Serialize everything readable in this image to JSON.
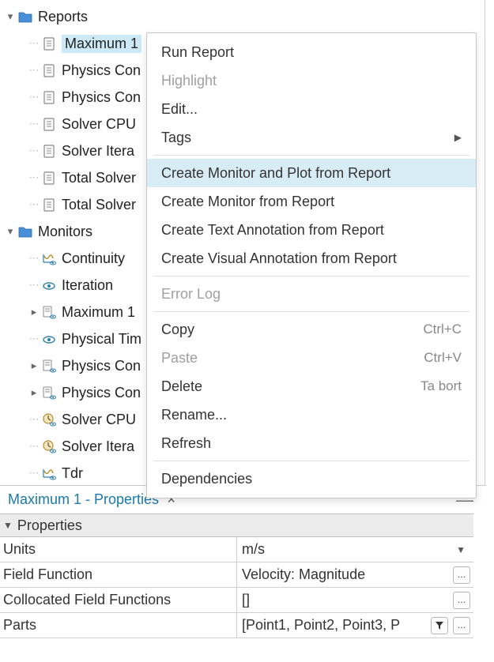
{
  "colors": {
    "selection_bg": "#cde8f6",
    "menu_hover_bg": "#d7ecf5",
    "folder_fill": "#4a90d9",
    "title_link": "#1a7aa8",
    "disabled_text": "#a0a0a0"
  },
  "tree": {
    "reports": {
      "label": "Reports",
      "items": [
        {
          "label": "Maximum 1",
          "selected": true
        },
        {
          "label": "Physics Con"
        },
        {
          "label": "Physics Con"
        },
        {
          "label": "Solver CPU"
        },
        {
          "label": "Solver Itera"
        },
        {
          "label": "Total Solver"
        },
        {
          "label": "Total Solver"
        }
      ]
    },
    "monitors": {
      "label": "Monitors",
      "items": [
        {
          "label": "Continuity",
          "icon": "residual"
        },
        {
          "label": "Iteration",
          "icon": "eye"
        },
        {
          "label": "Maximum 1",
          "icon": "report-mon",
          "expandable": true
        },
        {
          "label": "Physical Tim",
          "icon": "eye"
        },
        {
          "label": "Physics Con",
          "icon": "report-mon",
          "expandable": true
        },
        {
          "label": "Physics Con",
          "icon": "report-mon",
          "expandable": true
        },
        {
          "label": "Solver CPU",
          "icon": "clock-mon"
        },
        {
          "label": "Solver Itera",
          "icon": "clock-mon"
        },
        {
          "label": "Tdr",
          "icon": "residual"
        }
      ]
    }
  },
  "context_menu": {
    "items": [
      {
        "label": "Run Report",
        "enabled": true
      },
      {
        "label": "Highlight",
        "enabled": false
      },
      {
        "label": "Edit...",
        "enabled": true
      },
      {
        "label": "Tags",
        "enabled": true,
        "submenu": true
      },
      {
        "sep": true
      },
      {
        "label": "Create Monitor and Plot from Report",
        "enabled": true,
        "hovered": true
      },
      {
        "label": "Create Monitor from Report",
        "enabled": true
      },
      {
        "label": "Create Text Annotation from Report",
        "enabled": true
      },
      {
        "label": "Create Visual Annotation from Report",
        "enabled": true
      },
      {
        "sep": true
      },
      {
        "label": "Error Log",
        "enabled": false
      },
      {
        "sep": true
      },
      {
        "label": "Copy",
        "enabled": true,
        "shortcut": "Ctrl+C"
      },
      {
        "label": "Paste",
        "enabled": false,
        "shortcut": "Ctrl+V"
      },
      {
        "label": "Delete",
        "enabled": true,
        "shortcut": "Ta bort"
      },
      {
        "label": "Rename...",
        "enabled": true
      },
      {
        "label": "Refresh",
        "enabled": true
      },
      {
        "sep": true
      },
      {
        "label": "Dependencies",
        "enabled": true
      }
    ]
  },
  "properties_panel": {
    "title": "Maximum 1 - Properties",
    "header": "Properties",
    "rows": [
      {
        "label": "Units",
        "value": "m/s",
        "dropdown": true
      },
      {
        "label": "Field Function",
        "value": "Velocity: Magnitude",
        "ellipsis": true
      },
      {
        "label": "Collocated Field Functions",
        "value": "[]",
        "ellipsis": true
      },
      {
        "label": "Parts",
        "value": "[Point1, Point2, Point3, P",
        "filter": true,
        "ellipsis": true
      }
    ]
  }
}
